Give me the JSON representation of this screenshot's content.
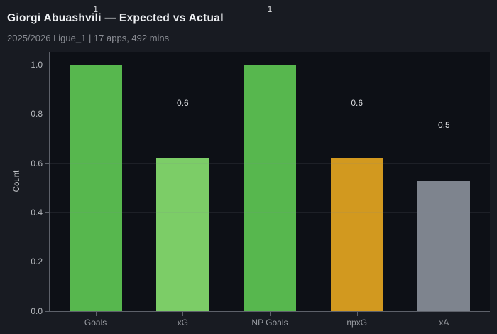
{
  "header": {
    "title": "Giorgi Abuashvili — Expected vs Actual",
    "subtitle": "2025/2026 Ligue_1 | 17 apps, 492 mins"
  },
  "chart_data": {
    "type": "bar",
    "title": "Giorgi Abuashvili — Expected vs Actual",
    "subtitle": "2025/2026 Ligue_1 | 17 apps, 492 mins",
    "categories": [
      "Goals",
      "xG",
      "NP Goals",
      "npxG",
      "xA"
    ],
    "values": [
      1.0,
      0.62,
      1.0,
      0.62,
      0.53
    ],
    "bar_labels": [
      "1",
      "0.6",
      "1",
      "0.6",
      "0.5"
    ],
    "bar_colors": [
      "#57b74e",
      "#7ccd67",
      "#57b74e",
      "#d2991f",
      "#7e848e"
    ],
    "xlabel": "",
    "ylabel": "Count",
    "ylim": [
      0,
      1.05
    ],
    "yticks": [
      0.0,
      0.2,
      0.4,
      0.6,
      0.8,
      1.0
    ],
    "ytick_labels": [
      "0.0",
      "0.2",
      "0.4",
      "0.6",
      "0.8",
      "1.0"
    ],
    "grid": "horizontal",
    "legend": "none"
  },
  "colors": {
    "figure_bg": "#181b22",
    "plot_bg": "#0d1016",
    "axis": "#5d616a",
    "gridline": "rgba(130,136,148,0.14)",
    "tick_label": "#b6b9be",
    "category_label": "#9a9da3",
    "count_label": "#c5c7cb",
    "title": "#eef0f3",
    "subtitle": "#8b8e95",
    "value_label": "#dcdee1",
    "green": "#57b74e",
    "light_green": "#7ccd67",
    "orange": "#d2991f",
    "gray": "#7e848e"
  }
}
